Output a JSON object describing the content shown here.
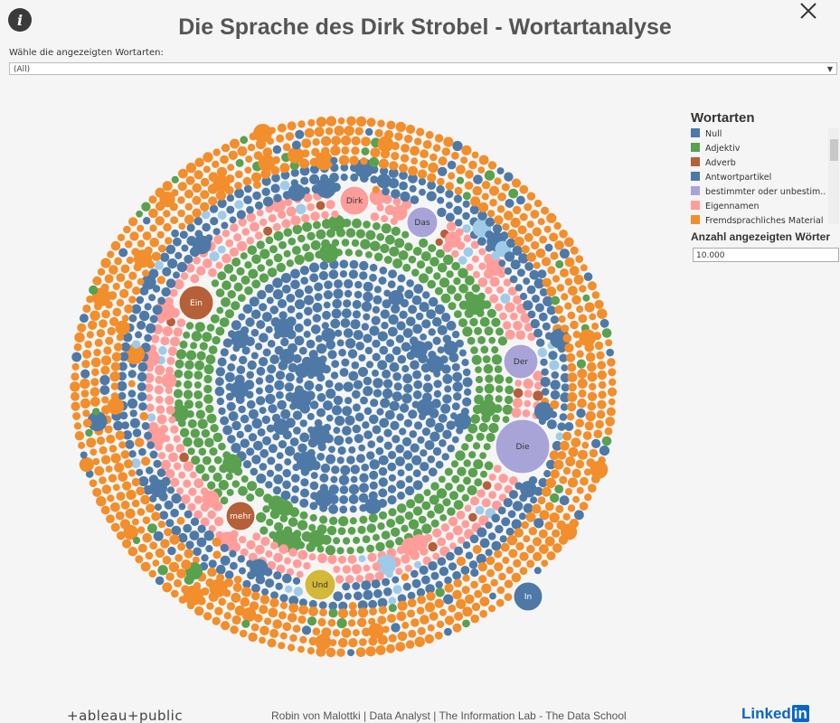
{
  "header": {
    "title": "Die Sprache des Dirk Strobel - Wortartanalyse"
  },
  "filter": {
    "label": "Wähle die angezeigten Wortarten:",
    "value": "(All)"
  },
  "legend": {
    "title": "Wortarten",
    "items": [
      {
        "name": "Null",
        "color": "#4e79a7"
      },
      {
        "name": "Adjektiv",
        "color": "#59a14f"
      },
      {
        "name": "Adverb",
        "color": "#b6603a"
      },
      {
        "name": "Antwortpartikel",
        "color": "#4e79a7"
      },
      {
        "name": "bestimmter oder unbestim..",
        "color": "#a9a4d8"
      },
      {
        "name": "Eigennamen",
        "color": "#ff9d9a"
      },
      {
        "name": "Fremdsprachliches Material",
        "color": "#f28e2b"
      }
    ]
  },
  "parameter": {
    "label": "Anzahl angezeigten Wörter",
    "value": "10.000"
  },
  "bubbles": [
    {
      "label": "Dirk",
      "color": "#ff9d9a"
    },
    {
      "label": "Das",
      "color": "#a9a4d8"
    },
    {
      "label": "Ein",
      "color": "#b6603a"
    },
    {
      "label": "Der",
      "color": "#a9a4d8"
    },
    {
      "label": "Die",
      "color": "#a9a4d8"
    },
    {
      "label": "mehr",
      "color": "#b6603a"
    },
    {
      "label": "Und",
      "color": "#d4b83a"
    },
    {
      "label": "In",
      "color": "#4e79a7"
    }
  ],
  "footer": {
    "logo": "+ableau+public",
    "credit": "Robin von Malottki | Data Analyst | The Information Lab - The Data School",
    "linkedin_a": "Linked",
    "linkedin_b": "in"
  }
}
